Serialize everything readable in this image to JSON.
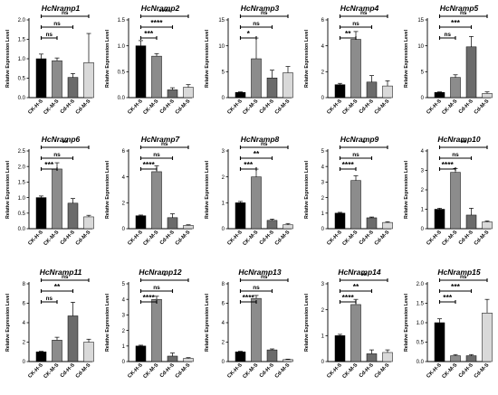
{
  "ylabel": "Relative Expression Level",
  "categories": [
    "CK-H-S",
    "CK-M-S",
    "Cd-H-S",
    "Cd-M-S"
  ],
  "colors": {
    "CK-H-S": "#000000",
    "CK-M-S": "#8c8c8c",
    "Cd-H-S": "#6b6b6b",
    "Cd-M-S": "#d9d9d9"
  },
  "chart_data": [
    {
      "type": "bar",
      "title": "HcNramp1",
      "ylim": [
        0,
        2.0
      ],
      "yticks": [
        "0.0",
        "0.5",
        "1.0",
        "1.5",
        "2.0"
      ],
      "categories": [
        "CK-H-S",
        "CK-M-S",
        "Cd-H-S",
        "Cd-M-S"
      ],
      "values": [
        1.0,
        0.95,
        0.52,
        0.9
      ],
      "errors": [
        0.12,
        0.07,
        0.1,
        0.75
      ],
      "significance": [
        {
          "pair": [
            0,
            3
          ],
          "label": "ns"
        },
        {
          "pair": [
            0,
            2
          ],
          "label": "ns"
        },
        {
          "pair": [
            0,
            1
          ],
          "label": "ns"
        }
      ]
    },
    {
      "type": "bar",
      "title": "HcNramp2",
      "ylim": [
        0,
        1.5
      ],
      "yticks": [
        "0.0",
        "0.5",
        "1.0",
        "1.5"
      ],
      "categories": [
        "CK-H-S",
        "CK-M-S",
        "Cd-H-S",
        "Cd-M-S"
      ],
      "values": [
        1.0,
        0.8,
        0.15,
        0.2
      ],
      "errors": [
        0.1,
        0.05,
        0.04,
        0.05
      ],
      "significance": [
        {
          "pair": [
            0,
            3
          ],
          "label": "****"
        },
        {
          "pair": [
            0,
            2
          ],
          "label": "****"
        },
        {
          "pair": [
            0,
            1
          ],
          "label": "***"
        }
      ]
    },
    {
      "type": "bar",
      "title": "HcNramp3",
      "ylim": [
        0,
        15
      ],
      "yticks": [
        "0",
        "5",
        "10",
        "15"
      ],
      "categories": [
        "CK-H-S",
        "CK-M-S",
        "Cd-H-S",
        "Cd-M-S"
      ],
      "values": [
        1.0,
        7.5,
        3.8,
        4.8
      ],
      "errors": [
        0.1,
        4.0,
        1.5,
        1.2
      ],
      "significance": [
        {
          "pair": [
            0,
            3
          ],
          "label": "ns"
        },
        {
          "pair": [
            0,
            2
          ],
          "label": "ns"
        },
        {
          "pair": [
            0,
            1
          ],
          "label": "*"
        }
      ]
    },
    {
      "type": "bar",
      "title": "HcNramp4",
      "ylim": [
        0,
        6
      ],
      "yticks": [
        "0",
        "2",
        "4",
        "6"
      ],
      "categories": [
        "CK-H-S",
        "CK-M-S",
        "Cd-H-S",
        "Cd-M-S"
      ],
      "values": [
        1.0,
        4.5,
        1.2,
        0.9
      ],
      "errors": [
        0.1,
        0.6,
        0.5,
        0.4
      ],
      "significance": [
        {
          "pair": [
            0,
            3
          ],
          "label": "ns"
        },
        {
          "pair": [
            0,
            2
          ],
          "label": "ns"
        },
        {
          "pair": [
            0,
            1
          ],
          "label": "**"
        }
      ]
    },
    {
      "type": "bar",
      "title": "HcNramp5",
      "ylim": [
        0,
        15
      ],
      "yticks": [
        "0",
        "5",
        "10",
        "15"
      ],
      "categories": [
        "CK-H-S",
        "CK-M-S",
        "Cd-H-S",
        "Cd-M-S"
      ],
      "values": [
        1.0,
        3.9,
        9.8,
        0.8
      ],
      "errors": [
        0.1,
        0.5,
        2.0,
        0.3
      ],
      "significance": [
        {
          "pair": [
            0,
            3
          ],
          "label": "ns"
        },
        {
          "pair": [
            0,
            2
          ],
          "label": "***"
        },
        {
          "pair": [
            0,
            1
          ],
          "label": "ns"
        }
      ]
    },
    {
      "type": "bar",
      "title": "HcNramp6",
      "ylim": [
        0,
        2.5
      ],
      "yticks": [
        "0.0",
        "0.5",
        "1.0",
        "1.5",
        "2.0",
        "2.5"
      ],
      "categories": [
        "CK-H-S",
        "CK-M-S",
        "Cd-H-S",
        "Cd-M-S"
      ],
      "values": [
        1.0,
        1.92,
        0.82,
        0.38
      ],
      "errors": [
        0.05,
        0.2,
        0.15,
        0.05
      ],
      "significance": [
        {
          "pair": [
            0,
            3
          ],
          "label": "**"
        },
        {
          "pair": [
            0,
            2
          ],
          "label": "ns"
        },
        {
          "pair": [
            0,
            1
          ],
          "label": "***"
        }
      ]
    },
    {
      "type": "bar",
      "title": "HcNramp7",
      "ylim": [
        0,
        6
      ],
      "yticks": [
        "0",
        "2",
        "4",
        "6"
      ],
      "categories": [
        "CK-H-S",
        "CK-M-S",
        "Cd-H-S",
        "Cd-M-S"
      ],
      "values": [
        1.0,
        4.4,
        0.85,
        0.25
      ],
      "errors": [
        0.05,
        0.45,
        0.3,
        0.05
      ],
      "significance": [
        {
          "pair": [
            0,
            3
          ],
          "label": "ns"
        },
        {
          "pair": [
            0,
            2
          ],
          "label": "ns"
        },
        {
          "pair": [
            0,
            1
          ],
          "label": "****"
        }
      ]
    },
    {
      "type": "bar",
      "title": "HcNramp8",
      "ylim": [
        0,
        3
      ],
      "yticks": [
        "0",
        "1",
        "2",
        "3"
      ],
      "categories": [
        "CK-H-S",
        "CK-M-S",
        "Cd-H-S",
        "Cd-M-S"
      ],
      "values": [
        1.0,
        2.0,
        0.32,
        0.15
      ],
      "errors": [
        0.05,
        0.3,
        0.05,
        0.05
      ],
      "significance": [
        {
          "pair": [
            0,
            3
          ],
          "label": "ns"
        },
        {
          "pair": [
            0,
            2
          ],
          "label": "**"
        },
        {
          "pair": [
            0,
            1
          ],
          "label": "***"
        }
      ]
    },
    {
      "type": "bar",
      "title": "HcNramp9",
      "ylim": [
        0,
        5
      ],
      "yticks": [
        "0",
        "1",
        "2",
        "3",
        "4",
        "5"
      ],
      "categories": [
        "CK-H-S",
        "CK-M-S",
        "Cd-H-S",
        "Cd-M-S"
      ],
      "values": [
        1.0,
        3.1,
        0.7,
        0.4
      ],
      "errors": [
        0.05,
        0.3,
        0.05,
        0.05
      ],
      "significance": [
        {
          "pair": [
            0,
            3
          ],
          "label": "*"
        },
        {
          "pair": [
            0,
            2
          ],
          "label": "ns"
        },
        {
          "pair": [
            0,
            1
          ],
          "label": "****"
        }
      ]
    },
    {
      "type": "bar",
      "title": "HcNramp10",
      "ylim": [
        0,
        4
      ],
      "yticks": [
        "0",
        "1",
        "2",
        "3",
        "4"
      ],
      "categories": [
        "CK-H-S",
        "CK-M-S",
        "Cd-H-S",
        "Cd-M-S"
      ],
      "values": [
        1.0,
        2.9,
        0.7,
        0.35
      ],
      "errors": [
        0.05,
        0.2,
        0.35,
        0.05
      ],
      "significance": [
        {
          "pair": [
            0,
            3
          ],
          "label": "**"
        },
        {
          "pair": [
            0,
            2
          ],
          "label": "ns"
        },
        {
          "pair": [
            0,
            1
          ],
          "label": "****"
        }
      ]
    },
    {
      "type": "bar",
      "title": "HcNramp11",
      "ylim": [
        0,
        8
      ],
      "yticks": [
        "0",
        "2",
        "4",
        "6",
        "8"
      ],
      "categories": [
        "CK-H-S",
        "CK-M-S",
        "Cd-H-S",
        "Cd-M-S"
      ],
      "values": [
        1.0,
        2.2,
        4.7,
        2.0
      ],
      "errors": [
        0.05,
        0.3,
        1.4,
        0.3
      ],
      "significance": [
        {
          "pair": [
            0,
            3
          ],
          "label": "ns"
        },
        {
          "pair": [
            0,
            2
          ],
          "label": "**"
        },
        {
          "pair": [
            0,
            1
          ],
          "label": "ns"
        }
      ]
    },
    {
      "type": "bar",
      "title": "HcNramp12",
      "ylim": [
        0,
        5
      ],
      "yticks": [
        "0",
        "1",
        "2",
        "3",
        "4",
        "5"
      ],
      "categories": [
        "CK-H-S",
        "CK-M-S",
        "Cd-H-S",
        "Cd-M-S"
      ],
      "values": [
        1.0,
        4.0,
        0.35,
        0.2
      ],
      "errors": [
        0.05,
        0.2,
        0.2,
        0.05
      ],
      "significance": [
        {
          "pair": [
            0,
            3
          ],
          "label": "*"
        },
        {
          "pair": [
            0,
            2
          ],
          "label": "ns"
        },
        {
          "pair": [
            0,
            1
          ],
          "label": "****"
        }
      ]
    },
    {
      "type": "bar",
      "title": "HcNramp13",
      "ylim": [
        0,
        8
      ],
      "yticks": [
        "0",
        "2",
        "4",
        "6",
        "8"
      ],
      "categories": [
        "CK-H-S",
        "CK-M-S",
        "Cd-H-S",
        "Cd-M-S"
      ],
      "values": [
        1.0,
        6.5,
        1.2,
        0.2
      ],
      "errors": [
        0.05,
        0.3,
        0.1,
        0.05
      ],
      "significance": [
        {
          "pair": [
            0,
            3
          ],
          "label": "ns"
        },
        {
          "pair": [
            0,
            2
          ],
          "label": "ns"
        },
        {
          "pair": [
            0,
            1
          ],
          "label": "****"
        }
      ]
    },
    {
      "type": "bar",
      "title": "HcNramp14",
      "ylim": [
        0,
        3
      ],
      "yticks": [
        "0",
        "1",
        "2",
        "3"
      ],
      "categories": [
        "CK-H-S",
        "CK-M-S",
        "Cd-H-S",
        "Cd-M-S"
      ],
      "values": [
        1.0,
        2.2,
        0.3,
        0.35
      ],
      "errors": [
        0.05,
        0.2,
        0.15,
        0.1
      ],
      "significance": [
        {
          "pair": [
            0,
            3
          ],
          "label": "**"
        },
        {
          "pair": [
            0,
            2
          ],
          "label": "**"
        },
        {
          "pair": [
            0,
            1
          ],
          "label": "****"
        }
      ]
    },
    {
      "type": "bar",
      "title": "HcNramp15",
      "ylim": [
        0,
        2.0
      ],
      "yticks": [
        "0.0",
        "0.5",
        "1.0",
        "1.5",
        "2.0"
      ],
      "categories": [
        "CK-H-S",
        "CK-M-S",
        "Cd-H-S",
        "Cd-M-S"
      ],
      "values": [
        1.0,
        0.15,
        0.15,
        1.25
      ],
      "errors": [
        0.1,
        0.03,
        0.03,
        0.35
      ],
      "significance": [
        {
          "pair": [
            0,
            3
          ],
          "label": "ns"
        },
        {
          "pair": [
            0,
            2
          ],
          "label": "***"
        },
        {
          "pair": [
            0,
            1
          ],
          "label": "***"
        }
      ]
    }
  ]
}
